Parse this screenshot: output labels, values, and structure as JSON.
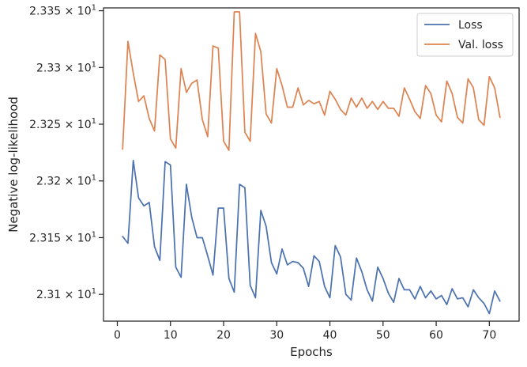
{
  "chart_data": {
    "type": "line",
    "title": "",
    "xlabel": "Epochs",
    "ylabel": "Negative log-likelihood",
    "xlim": [
      -2.6,
      75.6
    ],
    "ylim": [
      23.0764,
      23.3525
    ],
    "x_ticks": [
      0,
      10,
      20,
      30,
      40,
      50,
      60,
      70
    ],
    "y_ticks": [
      {
        "value": 23.1,
        "mantissa": "2.31"
      },
      {
        "value": 23.15,
        "mantissa": "2.315"
      },
      {
        "value": 23.2,
        "mantissa": "2.32"
      },
      {
        "value": 23.25,
        "mantissa": "2.325"
      },
      {
        "value": 23.3,
        "mantissa": "2.33"
      },
      {
        "value": 23.35,
        "mantissa": "2.335"
      }
    ],
    "y_tick_base": "× 10",
    "y_tick_exponent": "1",
    "grid": false,
    "legend_position": "top-right",
    "x": [
      1,
      2,
      3,
      4,
      5,
      6,
      7,
      8,
      9,
      10,
      11,
      12,
      13,
      14,
      15,
      16,
      17,
      18,
      19,
      20,
      21,
      22,
      23,
      24,
      25,
      26,
      27,
      28,
      29,
      30,
      31,
      32,
      33,
      34,
      35,
      36,
      37,
      38,
      39,
      40,
      41,
      42,
      43,
      44,
      45,
      46,
      47,
      48,
      49,
      50,
      51,
      52,
      53,
      54,
      55,
      56,
      57,
      58,
      59,
      60,
      61,
      62,
      63,
      64,
      65,
      66,
      67,
      68,
      69,
      70,
      71,
      72
    ],
    "series": [
      {
        "name": "Loss",
        "color": "#4c72b0",
        "values": [
          23.151,
          23.145,
          23.218,
          23.185,
          23.178,
          23.181,
          23.142,
          23.13,
          23.217,
          23.214,
          23.124,
          23.115,
          23.197,
          23.168,
          23.15,
          23.15,
          23.134,
          23.117,
          23.176,
          23.176,
          23.114,
          23.102,
          23.197,
          23.194,
          23.108,
          23.097,
          23.174,
          23.16,
          23.128,
          23.118,
          23.14,
          23.126,
          23.129,
          23.128,
          23.123,
          23.107,
          23.134,
          23.129,
          23.107,
          23.097,
          23.143,
          23.133,
          23.1,
          23.095,
          23.132,
          23.12,
          23.104,
          23.094,
          23.124,
          23.114,
          23.101,
          23.093,
          23.114,
          23.104,
          23.104,
          23.096,
          23.107,
          23.097,
          23.103,
          23.096,
          23.099,
          23.091,
          23.105,
          23.096,
          23.097,
          23.089,
          23.104,
          23.097,
          23.092,
          23.083,
          23.103,
          23.094
        ]
      },
      {
        "name": "Val. loss",
        "color": "#dd8452",
        "values": [
          23.228,
          23.323,
          23.295,
          23.27,
          23.275,
          23.255,
          23.244,
          23.311,
          23.307,
          23.237,
          23.229,
          23.299,
          23.278,
          23.286,
          23.289,
          23.254,
          23.239,
          23.319,
          23.317,
          23.235,
          23.227,
          23.349,
          23.349,
          23.243,
          23.235,
          23.33,
          23.314,
          23.259,
          23.251,
          23.299,
          23.284,
          23.265,
          23.265,
          23.282,
          23.267,
          23.271,
          23.268,
          23.27,
          23.258,
          23.279,
          23.272,
          23.263,
          23.258,
          23.273,
          23.265,
          23.273,
          23.264,
          23.27,
          23.263,
          23.27,
          23.264,
          23.264,
          23.257,
          23.282,
          23.272,
          23.261,
          23.255,
          23.284,
          23.277,
          23.258,
          23.252,
          23.288,
          23.277,
          23.256,
          23.251,
          23.29,
          23.282,
          23.254,
          23.249,
          23.292,
          23.282,
          23.256
        ]
      }
    ]
  }
}
